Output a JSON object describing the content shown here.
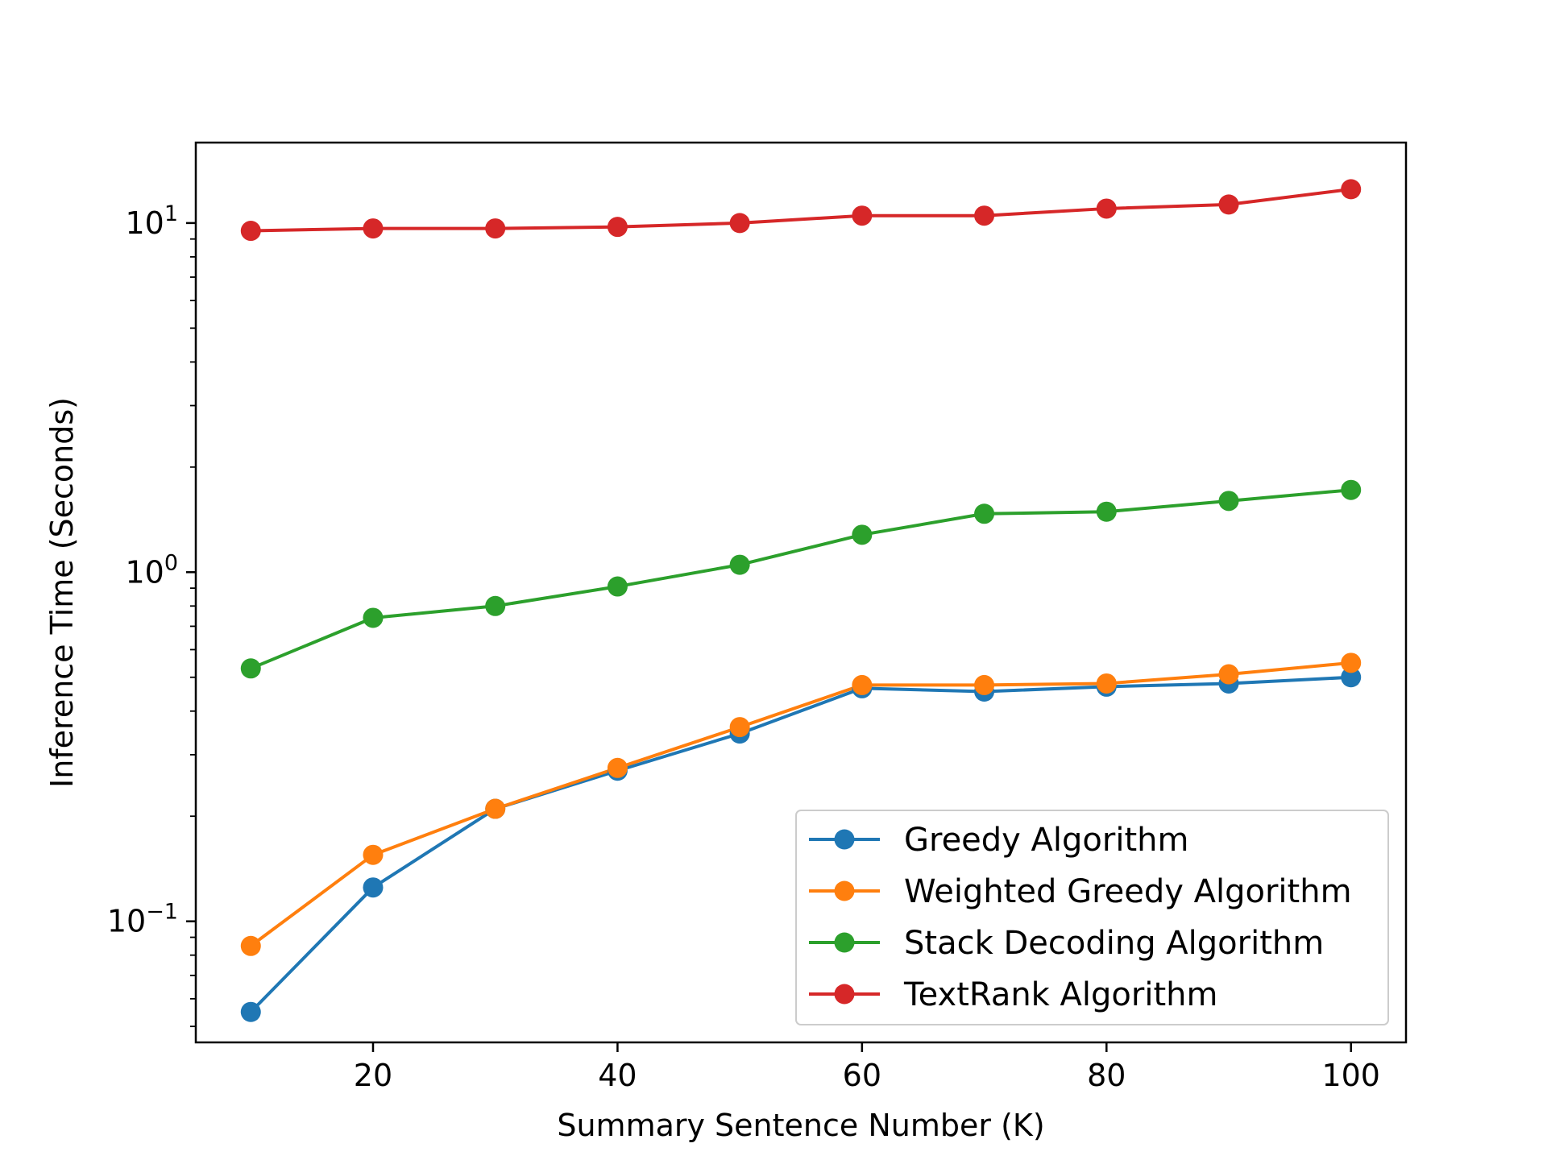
{
  "chart_data": {
    "type": "line",
    "title": "",
    "xlabel": "Summary Sentence Number (K)",
    "ylabel": "Inference Time (Seconds)",
    "x_scale": "linear",
    "y_scale": "log",
    "xlim": [
      5.5,
      104.5
    ],
    "ylim": [
      0.045,
      17
    ],
    "grid": false,
    "legend_position": "lower-right",
    "x": [
      10,
      20,
      30,
      40,
      50,
      60,
      70,
      80,
      90,
      100
    ],
    "x_ticks": [
      {
        "value": 20,
        "label": "20"
      },
      {
        "value": 40,
        "label": "40"
      },
      {
        "value": 60,
        "label": "60"
      },
      {
        "value": 80,
        "label": "80"
      },
      {
        "value": 100,
        "label": "100"
      }
    ],
    "y_ticks": [
      {
        "value": 0.1,
        "base": "10",
        "exp": "−1"
      },
      {
        "value": 1,
        "base": "10",
        "exp": "0"
      },
      {
        "value": 10,
        "base": "10",
        "exp": "1"
      }
    ],
    "series": [
      {
        "name": "Greedy Algorithm",
        "color": "#1f77b4",
        "values": [
          0.055,
          0.125,
          0.21,
          0.27,
          0.345,
          0.465,
          0.455,
          0.47,
          0.48,
          0.5
        ]
      },
      {
        "name": "Weighted Greedy Algorithm",
        "color": "#ff7f0e",
        "values": [
          0.085,
          0.155,
          0.21,
          0.275,
          0.36,
          0.475,
          0.475,
          0.48,
          0.51,
          0.55
        ]
      },
      {
        "name": "Stack Decoding Algorithm",
        "color": "#2ca02c",
        "values": [
          0.53,
          0.74,
          0.8,
          0.91,
          1.05,
          1.28,
          1.47,
          1.49,
          1.6,
          1.72
        ]
      },
      {
        "name": "TextRank Algorithm",
        "color": "#d62728",
        "values": [
          9.5,
          9.65,
          9.65,
          9.75,
          10.0,
          10.5,
          10.5,
          11.0,
          11.3,
          12.5
        ]
      }
    ]
  }
}
